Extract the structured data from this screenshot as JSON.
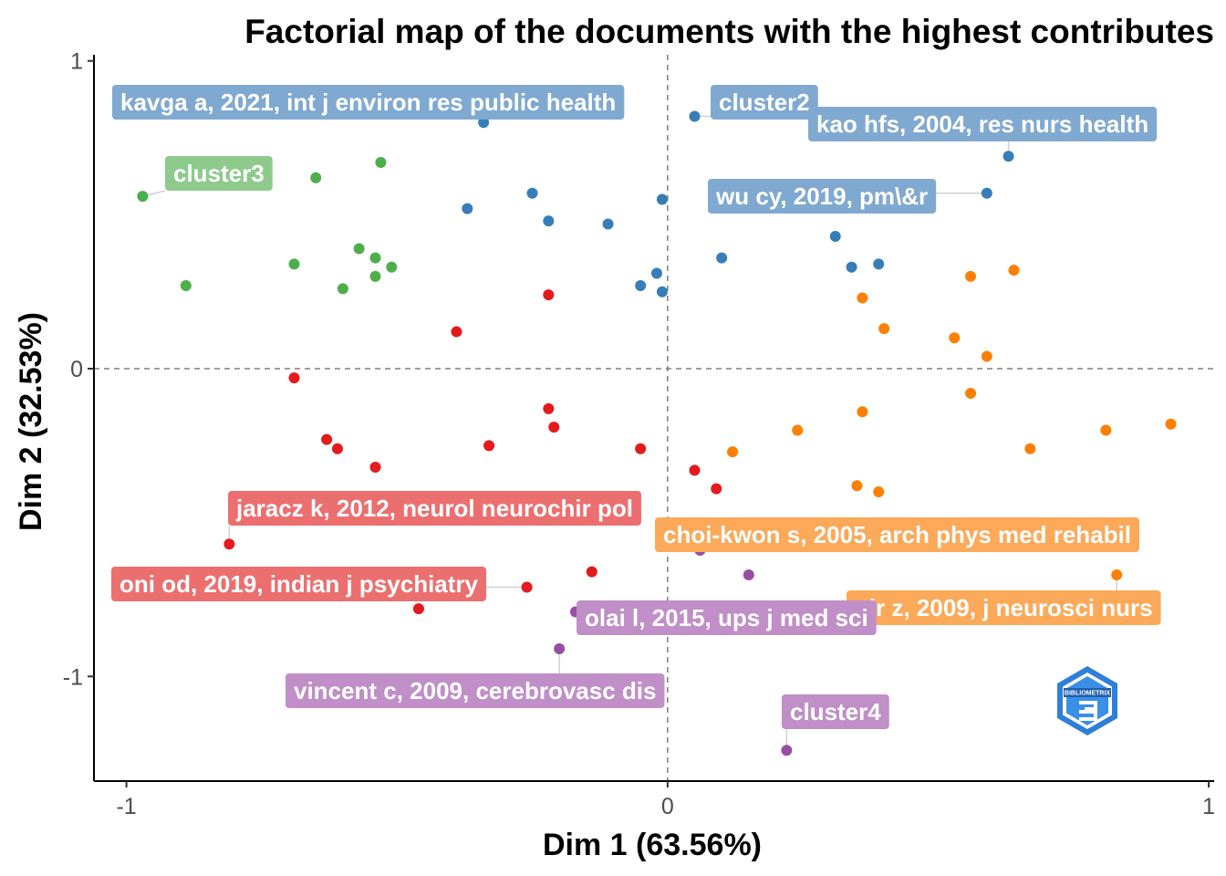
{
  "chart_data": {
    "type": "scatter",
    "title": "Factorial map of the documents with the highest contributes",
    "xlabel": "Dim 1 (63.56%)",
    "ylabel": "Dim 2 (32.53%)",
    "xlim": [
      -1.06,
      1.01
    ],
    "ylim": [
      -1.34,
      1.02
    ],
    "xticks": [
      {
        "value": -1,
        "label": "-1"
      },
      {
        "value": 0,
        "label": "0"
      },
      {
        "value": 1,
        "label": "1"
      }
    ],
    "yticks": [
      {
        "value": -1,
        "label": "-1"
      },
      {
        "value": 0,
        "label": "0"
      },
      {
        "value": 1,
        "label": "1"
      }
    ],
    "reference_lines": {
      "x": 0,
      "y": 0,
      "style": "dashed"
    },
    "grid": false,
    "clusters": [
      {
        "id": "cluster1",
        "color": "#e41a1c",
        "label_color": "#ec6f70",
        "points": [
          [
            -0.22,
            0.24
          ],
          [
            -0.39,
            0.12
          ],
          [
            -0.69,
            -0.03
          ],
          [
            -0.22,
            -0.13
          ],
          [
            -0.21,
            -0.19
          ],
          [
            -0.63,
            -0.23
          ],
          [
            -0.61,
            -0.26
          ],
          [
            -0.33,
            -0.25
          ],
          [
            -0.05,
            -0.26
          ],
          [
            -0.54,
            -0.32
          ],
          [
            0.05,
            -0.33
          ],
          [
            0.09,
            -0.39
          ],
          [
            -0.81,
            -0.57
          ],
          [
            -0.26,
            -0.71
          ],
          [
            -0.14,
            -0.66
          ],
          [
            -0.46,
            -0.78
          ]
        ]
      },
      {
        "id": "cluster2",
        "color": "#377eb8",
        "label_color": "#80a9d1",
        "points": [
          [
            -0.34,
            0.8
          ],
          [
            0.05,
            0.82
          ],
          [
            0.63,
            0.69
          ],
          [
            0.59,
            0.57
          ],
          [
            -0.25,
            0.57
          ],
          [
            -0.37,
            0.52
          ],
          [
            -0.22,
            0.48
          ],
          [
            -0.11,
            0.47
          ],
          [
            -0.01,
            0.55
          ],
          [
            0.31,
            0.43
          ],
          [
            0.34,
            0.33
          ],
          [
            0.39,
            0.34
          ],
          [
            0.1,
            0.36
          ],
          [
            -0.02,
            0.31
          ],
          [
            -0.05,
            0.27
          ],
          [
            -0.01,
            0.25
          ]
        ]
      },
      {
        "id": "cluster3",
        "color": "#4daf4a",
        "label_color": "#8fca8d",
        "points": [
          [
            -0.97,
            0.56
          ],
          [
            -0.89,
            0.27
          ],
          [
            -0.65,
            0.62
          ],
          [
            -0.53,
            0.67
          ],
          [
            -0.69,
            0.34
          ],
          [
            -0.57,
            0.39
          ],
          [
            -0.54,
            0.36
          ],
          [
            -0.51,
            0.33
          ],
          [
            -0.54,
            0.3
          ],
          [
            -0.6,
            0.26
          ]
        ]
      },
      {
        "id": "cluster4",
        "color": "#984ea3",
        "label_color": "#c08fc7",
        "points": [
          [
            0.06,
            -0.59
          ],
          [
            0.15,
            -0.67
          ],
          [
            -0.17,
            -0.79
          ],
          [
            -0.2,
            -0.91
          ],
          [
            0.22,
            -1.24
          ]
        ]
      },
      {
        "id": "cluster5",
        "color": "#ff7f00",
        "label_color": "#fca959",
        "points": [
          [
            0.64,
            0.32
          ],
          [
            0.56,
            0.3
          ],
          [
            0.36,
            0.23
          ],
          [
            0.4,
            0.13
          ],
          [
            0.53,
            0.1
          ],
          [
            0.59,
            0.04
          ],
          [
            0.56,
            -0.08
          ],
          [
            0.36,
            -0.14
          ],
          [
            0.24,
            -0.2
          ],
          [
            0.12,
            -0.27
          ],
          [
            0.67,
            -0.26
          ],
          [
            0.81,
            -0.2
          ],
          [
            0.93,
            -0.18
          ],
          [
            0.35,
            -0.38
          ],
          [
            0.39,
            -0.4
          ],
          [
            0.8,
            -0.57
          ],
          [
            0.83,
            -0.67
          ]
        ]
      }
    ],
    "labels": [
      {
        "text": "kavga a, 2021, int j environ res public health",
        "cluster": "cluster2",
        "x": -0.34,
        "y": 0.8
      },
      {
        "text": "cluster2",
        "cluster": "cluster2",
        "x": 0.05,
        "y": 0.82
      },
      {
        "text": "kao hfs, 2004, res nurs health",
        "cluster": "cluster2",
        "x": 0.63,
        "y": 0.69
      },
      {
        "text": "wu cy, 2019, pm\\&r",
        "cluster": "cluster2",
        "x": 0.59,
        "y": 0.57
      },
      {
        "text": "cluster3",
        "cluster": "cluster3",
        "x": -0.97,
        "y": 0.56
      },
      {
        "text": "jaracz k, 2012, neurol neurochir pol",
        "cluster": "cluster1",
        "x": -0.81,
        "y": -0.57
      },
      {
        "text": "oni od, 2019, indian j psychiatry",
        "cluster": "cluster1",
        "x": -0.26,
        "y": -0.71
      },
      {
        "text": "choi-kwon s, 2005, arch phys med rehabil",
        "cluster": "cluster5",
        "x": 0.8,
        "y": -0.57
      },
      {
        "text": "nir z, 2009, j neurosci nurs",
        "cluster": "cluster5",
        "x": 0.83,
        "y": -0.67
      },
      {
        "text": "olai l, 2015, ups j med sci",
        "cluster": "cluster4",
        "x": -0.17,
        "y": -0.79
      },
      {
        "text": "vincent c, 2009, cerebrovasc dis",
        "cluster": "cluster4",
        "x": -0.2,
        "y": -0.91
      },
      {
        "text": "cluster4",
        "cluster": "cluster4",
        "x": 0.22,
        "y": -1.24
      }
    ],
    "logo_text": "BIBLIOMETRIX"
  }
}
